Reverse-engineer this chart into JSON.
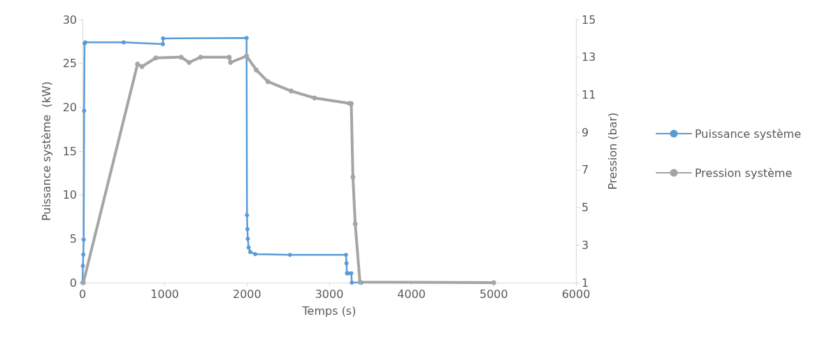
{
  "chart_data": {
    "type": "line",
    "xlabel": "Temps (s)",
    "ylabel": "Puissance système  (kW)",
    "y2label": "Pression (bar)",
    "xlim": [
      0,
      6000
    ],
    "xticks": [
      0,
      1000,
      2000,
      3000,
      4000,
      5000,
      6000
    ],
    "ylim": [
      0,
      30
    ],
    "yticks": [
      0,
      5,
      10,
      15,
      20,
      25,
      30
    ],
    "y2lim": [
      1,
      15
    ],
    "y2ticks": [
      1,
      3,
      5,
      7,
      9,
      11,
      13,
      15
    ],
    "grid": false,
    "legend": "right",
    "marker": "circle",
    "line_style": "solid",
    "series": [
      {
        "name": "Puissance système",
        "color": "#5b9bd5",
        "x": [
          0,
          5,
          10,
          15,
          20,
          25,
          35,
          500,
          977,
          980,
          1995,
          2000,
          2005,
          2010,
          2020,
          2040,
          2100,
          2523,
          3203,
          3210,
          3215,
          3230,
          3268,
          3275,
          3390
        ],
        "values": [
          0,
          1.9,
          3.2,
          4.9,
          19.6,
          27.3,
          27.4,
          27.4,
          27.2,
          27.85,
          27.9,
          7.7,
          6.1,
          5.0,
          4.0,
          3.5,
          3.25,
          3.17,
          3.17,
          2.2,
          1.06,
          1.06,
          1.06,
          0,
          0
        ]
      },
      {
        "name": "Pression système",
        "color": "#a5a5a5",
        "axis": "y2",
        "x": [
          10,
          669,
          723,
          892,
          1200,
          1297,
          1435,
          1784,
          1800,
          1995,
          2113,
          2254,
          2537,
          2821,
          3246,
          3268,
          3288,
          3316,
          3373,
          5000
        ],
        "values": [
          1,
          12.63,
          12.5,
          12.96,
          13.0,
          12.72,
          13.0,
          13.0,
          12.72,
          13.06,
          12.32,
          11.7,
          11.2,
          10.83,
          10.54,
          10.53,
          6.62,
          4.13,
          1.03,
          1
        ]
      }
    ]
  }
}
